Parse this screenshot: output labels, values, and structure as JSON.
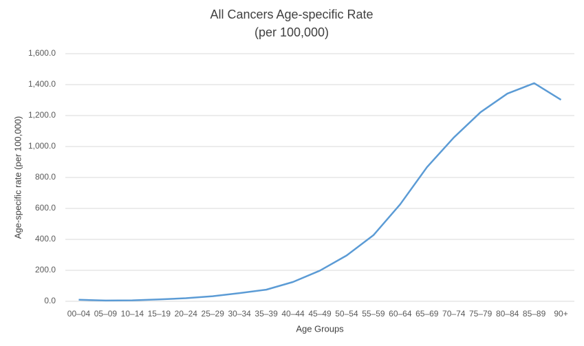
{
  "chart_data": {
    "type": "line",
    "title": "All Cancers Age-specific Rate",
    "subtitle": "(per 100,000)",
    "x_label": "Age Groups",
    "y_label": "Age-specific rate (per 100,000)",
    "categories": [
      "00–04",
      "05–09",
      "10–14",
      "15–19",
      "20–24",
      "25–29",
      "30–34",
      "35–39",
      "40–44",
      "45–49",
      "50–54",
      "55–59",
      "60–64",
      "65–69",
      "70–74",
      "75–79",
      "80–84",
      "85–89",
      "90+"
    ],
    "series": [
      {
        "name": "All Cancers",
        "color": "#5b9bd5",
        "values": [
          10,
          5,
          6,
          12,
          20,
          33,
          53,
          75,
          125,
          198,
          296,
          427,
          627,
          867,
          1058,
          1222,
          1342,
          1409,
          1302
        ]
      }
    ],
    "ylim": [
      0,
      1600
    ],
    "yticks": [
      {
        "value": 0,
        "label": "0.0"
      },
      {
        "value": 200,
        "label": "200.0"
      },
      {
        "value": 400,
        "label": "400.0"
      },
      {
        "value": 600,
        "label": "600.0"
      },
      {
        "value": 800,
        "label": "800.0"
      },
      {
        "value": 1000,
        "label": "1,000.0"
      },
      {
        "value": 1200,
        "label": "1,200.0"
      },
      {
        "value": 1400,
        "label": "1,400.0"
      },
      {
        "value": 1600,
        "label": "1,600.0"
      }
    ],
    "grid": true
  }
}
